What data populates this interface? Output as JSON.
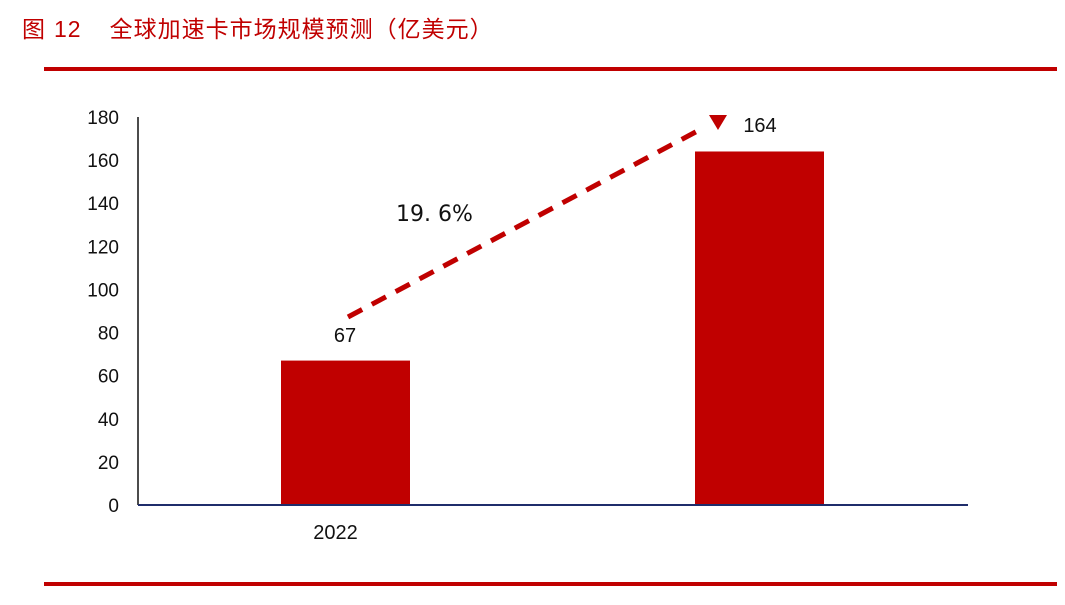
{
  "header": {
    "figure_label": "图",
    "figure_number": "12",
    "title": "全球加速卡市场规模预测（亿美元）"
  },
  "colors": {
    "accent": "#c00000",
    "axis": "#1f2d6b",
    "text": "#111111"
  },
  "chart_data": {
    "type": "bar",
    "title": "全球加速卡市场规模预测（亿美元）",
    "categories": [
      "2022",
      ""
    ],
    "values": [
      67,
      164
    ],
    "data_labels": [
      "67",
      "164"
    ],
    "xlabel": "",
    "ylabel": "",
    "ylim": [
      0,
      180
    ],
    "yticks": [
      0,
      20,
      40,
      60,
      80,
      100,
      120,
      140,
      160,
      180
    ],
    "grid": false,
    "legend": null,
    "annotations": [
      {
        "type": "dashed-arrow",
        "from_value": 67,
        "to_value": 164,
        "label": "19. 6%"
      }
    ]
  }
}
